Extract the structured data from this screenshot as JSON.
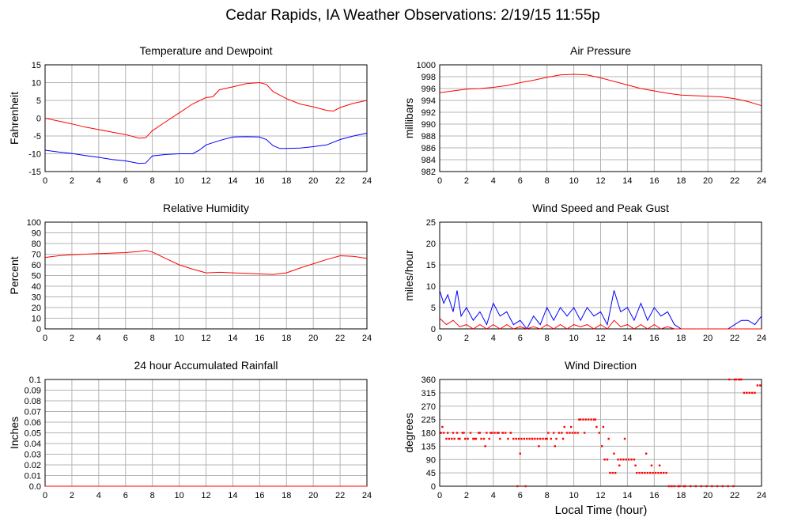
{
  "page_title": "Cedar Rapids, IA Weather Observations: 2/19/15 11:55p",
  "xlabel": "Local Time (hour)",
  "chart_data": [
    {
      "id": "temp",
      "type": "line",
      "title": "Temperature and Dewpoint",
      "ylabel": "Fahrenheit",
      "xlim": [
        0,
        24
      ],
      "ylim": [
        -15,
        15
      ],
      "yticks": [
        -15,
        -10,
        -5,
        0,
        5,
        10,
        15
      ],
      "xticks": [
        0,
        2,
        4,
        6,
        8,
        10,
        12,
        14,
        16,
        18,
        20,
        22,
        24
      ],
      "grid": true,
      "series": [
        {
          "color": "#ff0000",
          "x": [
            0,
            1,
            2,
            3,
            4,
            5,
            6,
            7,
            7.5,
            8,
            9,
            10,
            11,
            12,
            12.5,
            13,
            14,
            15,
            16,
            16.5,
            17,
            18,
            19,
            20,
            21,
            21.5,
            22,
            23,
            24
          ],
          "y": [
            0,
            -0.8,
            -1.6,
            -2.5,
            -3.2,
            -3.9,
            -4.6,
            -5.6,
            -5.5,
            -3.5,
            -1,
            1.5,
            4,
            5.8,
            6,
            8,
            8.8,
            9.7,
            10,
            9.5,
            7.5,
            5.5,
            4,
            3.2,
            2.2,
            2,
            3,
            4.2,
            5
          ]
        },
        {
          "color": "#0000ff",
          "x": [
            0,
            1,
            2,
            3,
            4,
            5,
            6,
            7,
            7.5,
            8,
            9,
            10,
            11,
            11.5,
            12,
            13,
            14,
            15,
            16,
            16.5,
            17,
            17.5,
            18,
            19,
            20,
            21,
            22,
            23,
            24
          ],
          "y": [
            -9,
            -9.5,
            -9.9,
            -10.5,
            -11,
            -11.6,
            -12,
            -12.7,
            -12.6,
            -10.6,
            -10.2,
            -10,
            -10,
            -9,
            -7.5,
            -6.3,
            -5.3,
            -5.2,
            -5.3,
            -6,
            -7.7,
            -8.5,
            -8.5,
            -8.4,
            -8,
            -7.5,
            -6,
            -5,
            -4.2
          ]
        }
      ]
    },
    {
      "id": "pressure",
      "type": "line",
      "title": "Air Pressure",
      "ylabel": "millibars",
      "xlim": [
        0,
        24
      ],
      "ylim": [
        982,
        1000
      ],
      "yticks": [
        982,
        984,
        986,
        988,
        990,
        992,
        994,
        996,
        998,
        1000
      ],
      "xticks": [
        0,
        2,
        4,
        6,
        8,
        10,
        12,
        14,
        16,
        18,
        20,
        22,
        24
      ],
      "grid": true,
      "series": [
        {
          "color": "#ff0000",
          "x": [
            0,
            1,
            2,
            3,
            4,
            5,
            6,
            7,
            8,
            9,
            10,
            11,
            12,
            13,
            14,
            15,
            16,
            17,
            18,
            19,
            20,
            21,
            22,
            23,
            24
          ],
          "y": [
            995.3,
            995.6,
            995.9,
            996,
            996.2,
            996.5,
            997,
            997.4,
            997.9,
            998.3,
            998.4,
            998.3,
            997.8,
            997.2,
            996.6,
            996,
            995.6,
            995.2,
            994.9,
            994.8,
            994.7,
            994.6,
            994.3,
            993.8,
            993.1
          ]
        }
      ]
    },
    {
      "id": "humidity",
      "type": "line",
      "title": "Relative Humidity",
      "ylabel": "Percent",
      "xlim": [
        0,
        24
      ],
      "ylim": [
        0,
        100
      ],
      "yticks": [
        0,
        10,
        20,
        30,
        40,
        50,
        60,
        70,
        80,
        90,
        100
      ],
      "xticks": [
        0,
        2,
        4,
        6,
        8,
        10,
        12,
        14,
        16,
        18,
        20,
        22,
        24
      ],
      "grid": true,
      "series": [
        {
          "color": "#ff0000",
          "x": [
            0,
            1,
            2,
            3,
            4,
            5,
            6,
            7,
            7.5,
            8,
            9,
            10,
            11,
            12,
            13,
            14,
            15,
            16,
            17,
            18,
            19,
            20,
            21,
            22,
            23,
            24
          ],
          "y": [
            67,
            68.5,
            69.5,
            70,
            70.5,
            71,
            71.5,
            72.5,
            73.5,
            72,
            66,
            60,
            56,
            52.5,
            53,
            52.5,
            52,
            51.5,
            51,
            52.5,
            57,
            61,
            65,
            68.5,
            68,
            66
          ]
        }
      ]
    },
    {
      "id": "wind",
      "type": "line",
      "title": "Wind Speed and Peak Gust",
      "ylabel": "miles/hour",
      "xlim": [
        0,
        24
      ],
      "ylim": [
        0,
        25
      ],
      "yticks": [
        0,
        5,
        10,
        15,
        20,
        25
      ],
      "xticks": [
        0,
        2,
        4,
        6,
        8,
        10,
        12,
        14,
        16,
        18,
        20,
        22,
        24
      ],
      "grid": true,
      "series": [
        {
          "color": "#0000ff",
          "x": [
            0,
            0.3,
            0.6,
            1,
            1.3,
            1.6,
            2,
            2.5,
            3,
            3.5,
            4,
            4.5,
            5,
            5.5,
            6,
            6.5,
            7,
            7.5,
            8,
            8.5,
            9,
            9.5,
            10,
            10.5,
            11,
            11.5,
            12,
            12.5,
            13,
            13.5,
            14,
            14.5,
            15,
            15.5,
            16,
            16.5,
            17,
            17.5,
            18,
            18.5,
            19,
            20,
            21,
            21.5,
            22,
            22.5,
            23,
            23.5,
            24
          ],
          "y": [
            9,
            6,
            8,
            4,
            9,
            3,
            5,
            2,
            4,
            1,
            6,
            3,
            4,
            1,
            2,
            0,
            3,
            1,
            5,
            2,
            5,
            3,
            5,
            2,
            5,
            3,
            4,
            1,
            9,
            4,
            5,
            2,
            6,
            2,
            5,
            3,
            4,
            1,
            0,
            0,
            0,
            0,
            0,
            0,
            1,
            2,
            2,
            1,
            3
          ]
        },
        {
          "color": "#ff0000",
          "x": [
            0,
            0.5,
            1,
            1.5,
            2,
            2.5,
            3,
            3.5,
            4,
            4.5,
            5,
            5.5,
            6,
            6.5,
            7,
            7.5,
            8,
            8.5,
            9,
            9.5,
            10,
            10.5,
            11,
            11.5,
            12,
            12.5,
            13,
            13.5,
            14,
            14.5,
            15,
            15.5,
            16,
            16.5,
            17,
            17.5,
            18,
            24
          ],
          "y": [
            2.5,
            1,
            2,
            0.5,
            1,
            0,
            1,
            0,
            1,
            0,
            1,
            0,
            0.5,
            0,
            0.5,
            0,
            1,
            0,
            1,
            0,
            1,
            0.5,
            1,
            0,
            1,
            0,
            2,
            0.5,
            1,
            0,
            1,
            0,
            1,
            0,
            0.5,
            0,
            0,
            0
          ]
        }
      ]
    },
    {
      "id": "rain",
      "type": "line",
      "title": "24 hour Accumulated Rainfall",
      "ylabel": "Inches",
      "xlim": [
        0,
        24
      ],
      "ylim": [
        0,
        0.1
      ],
      "yticks": [
        0,
        0.01,
        0.02,
        0.03,
        0.04,
        0.05,
        0.06,
        0.07,
        0.08,
        0.09,
        0.1
      ],
      "ytick_labels": [
        "0.0",
        "0.01",
        "0.02",
        "0.03",
        "0.04",
        "0.05",
        "0.06",
        "0.07",
        "0.08",
        "0.09",
        "0.1"
      ],
      "xticks": [
        0,
        2,
        4,
        6,
        8,
        10,
        12,
        14,
        16,
        18,
        20,
        22,
        24
      ],
      "grid": true,
      "series": [
        {
          "color": "#ff0000",
          "x": [
            0,
            24
          ],
          "y": [
            0,
            0
          ]
        }
      ]
    },
    {
      "id": "winddir",
      "type": "scatter",
      "title": "Wind Direction",
      "ylabel": "degrees",
      "xlim": [
        0,
        24
      ],
      "ylim": [
        0,
        360
      ],
      "yticks": [
        0,
        45,
        90,
        135,
        180,
        225,
        270,
        315,
        360
      ],
      "xticks": [
        0,
        2,
        4,
        6,
        8,
        10,
        12,
        14,
        16,
        18,
        20,
        22,
        24
      ],
      "grid": true,
      "series": [
        {
          "color": "#ff0000",
          "x": [
            0.1,
            0.3,
            0.5,
            0.7,
            0.9,
            1.1,
            1.3,
            1.5,
            1.7,
            1.9,
            2.1,
            2.3,
            2.5,
            2.7,
            2.9,
            3.1,
            3.3,
            3.5,
            3.7,
            3.9,
            4.1,
            4.3,
            4.5,
            4.7,
            4.9,
            5.1,
            5.3,
            5.5,
            5.7,
            5.9,
            6.1,
            6.3,
            6.5,
            6.7,
            6.9,
            7.1,
            7.3,
            7.5,
            7.7,
            7.9,
            8.1,
            8.3,
            8.5,
            8.7,
            8.9,
            9.1,
            9.3,
            9.5,
            9.7,
            9.9,
            10.1,
            10.3,
            10.5,
            10.7,
            10.9,
            11.1,
            11.3,
            11.5,
            11.7,
            11.9,
            12.1,
            12.3,
            12.5,
            12.7,
            12.9,
            13.1,
            13.3,
            13.5,
            13.7,
            13.9,
            14.1,
            14.3,
            14.5,
            14.7,
            14.9,
            15.1,
            15.3,
            15.5,
            15.7,
            15.9,
            16.1,
            16.3,
            16.5,
            16.7,
            16.9,
            17.1,
            17.5,
            17.9,
            18.3,
            18.7,
            19.1,
            19.5,
            19.9,
            20.3,
            20.7,
            21.1,
            21.5,
            21.9,
            22.1,
            22.3,
            22.5,
            22.7,
            22.9,
            23.1,
            23.3,
            23.5,
            23.7,
            23.9,
            0.2,
            0.6,
            1.0,
            1.4,
            1.8,
            2.6,
            3.0,
            3.4,
            3.8,
            4.4,
            4.7,
            5.3,
            5.8,
            6.0,
            6.4,
            6.9,
            7.4,
            8.0,
            8.6,
            9.2,
            9.8,
            10.4,
            10.8,
            11.6,
            12.2,
            12.6,
            13.0,
            13.4,
            13.8,
            14.6,
            15.4,
            15.8,
            16.4,
            17.3,
            17.8,
            18.2,
            21.6,
            22.0,
            22.4
          ],
          "y": [
            180,
            180,
            160,
            160,
            160,
            160,
            180,
            160,
            180,
            160,
            160,
            180,
            160,
            160,
            180,
            160,
            160,
            180,
            160,
            180,
            180,
            180,
            160,
            180,
            180,
            160,
            180,
            160,
            160,
            160,
            160,
            160,
            160,
            160,
            160,
            160,
            160,
            160,
            160,
            160,
            180,
            160,
            180,
            160,
            180,
            180,
            200,
            180,
            180,
            180,
            180,
            180,
            225,
            225,
            225,
            225,
            225,
            225,
            200,
            180,
            135,
            90,
            90,
            45,
            45,
            45,
            90,
            90,
            90,
            90,
            90,
            90,
            90,
            45,
            45,
            45,
            45,
            45,
            45,
            45,
            45,
            45,
            45,
            45,
            45,
            0,
            0,
            0,
            0,
            0,
            0,
            0,
            0,
            0,
            0,
            0,
            0,
            0,
            360,
            360,
            360,
            315,
            315,
            315,
            315,
            315,
            340,
            340,
            200,
            180,
            180,
            160,
            180,
            160,
            180,
            135,
            180,
            180,
            180,
            180,
            0,
            110,
            0,
            160,
            135,
            160,
            135,
            160,
            200,
            225,
            180,
            225,
            200,
            160,
            110,
            70,
            160,
            70,
            110,
            70,
            70,
            0,
            0,
            0,
            360,
            360,
            360
          ]
        }
      ]
    }
  ]
}
